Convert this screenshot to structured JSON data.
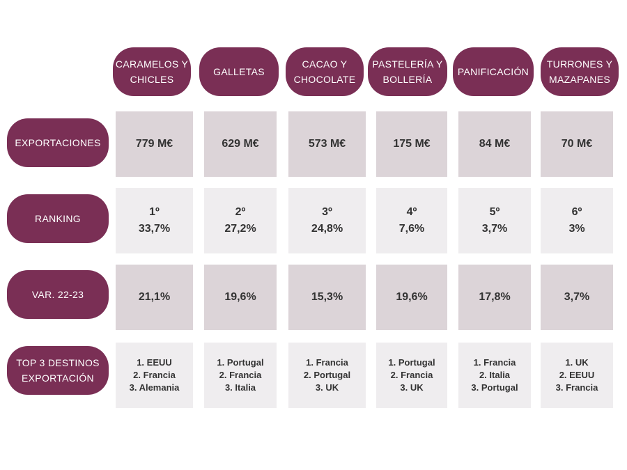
{
  "columns": [
    "CARAMELOS Y\nCHICLES",
    "GALLETAS",
    "CACAO Y\nCHOCOLATE",
    "PASTELERÍA Y\nBOLLERÍA",
    "PANIFICACIÓN",
    "TURRONES Y\nMAZAPANES"
  ],
  "rows": [
    "EXPORTACIONES",
    "RANKING",
    "VAR. 22-23",
    "TOP 3 DESTINOS\nEXPORTACIÓN"
  ],
  "exportaciones": [
    "779 M€",
    "629 M€",
    "573 M€",
    "175 M€",
    "84 M€",
    "70 M€"
  ],
  "ranking": [
    "1º\n33,7%",
    "2º\n27,2%",
    "3º\n24,8%",
    "4º\n7,6%",
    "5º\n3,7%",
    "6º\n3%"
  ],
  "variacion": [
    "21,1%",
    "19,6%",
    "15,3%",
    "19,6%",
    "17,8%",
    "3,7%"
  ],
  "destinos": [
    "1. EEUU\n2. Francia\n3. Alemania",
    "1. Portugal\n2. Francia\n3. Italia",
    "1. Francia\n2. Portugal\n3. UK",
    "1. Portugal\n2. Francia\n3. UK",
    "1. Francia\n2. Italia\n3. Portugal",
    "1. UK\n2. EEUU\n3. Francia"
  ],
  "colors": {
    "accent": "#7a2f55",
    "cell_dark": "#dcd4d8",
    "cell_light": "#efedef",
    "text": "#333333"
  }
}
